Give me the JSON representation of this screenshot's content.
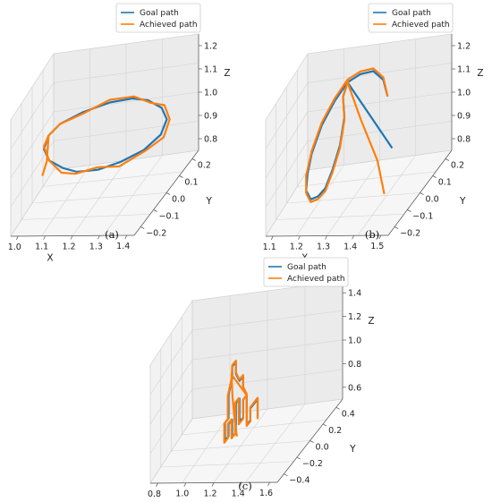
{
  "chart_data": [
    {
      "type": "line3d",
      "caption": "(a)",
      "legend": {
        "placement": "top-center",
        "entries": [
          "Goal path",
          "Achieved path"
        ]
      },
      "xlabel": "X",
      "ylabel": "Y",
      "zlabel": "Z",
      "x_ticks": [
        "1.0",
        "1.1",
        "1.2",
        "1.3",
        "1.4"
      ],
      "y_ticks": [
        "0.2",
        "0.1",
        "0.0",
        "−0.1",
        "−0.2"
      ],
      "z_ticks": [
        "1.2",
        "1.1",
        "1.0",
        "0.9",
        "0.8"
      ],
      "series": [
        {
          "name": "Goal path",
          "color": "#1f77b4",
          "points": [
            [
              1.0,
              0.0,
              1.0
            ],
            [
              1.02,
              0.07,
              1.0
            ],
            [
              1.07,
              0.13,
              1.0
            ],
            [
              1.14,
              0.17,
              1.0
            ],
            [
              1.2,
              0.19,
              1.0
            ],
            [
              1.27,
              0.18,
              1.0
            ],
            [
              1.33,
              0.14,
              1.0
            ],
            [
              1.38,
              0.08,
              1.0
            ],
            [
              1.4,
              0.0,
              1.0
            ],
            [
              1.38,
              -0.08,
              1.0
            ],
            [
              1.33,
              -0.14,
              1.0
            ],
            [
              1.26,
              -0.18,
              1.0
            ],
            [
              1.2,
              -0.19,
              1.0
            ],
            [
              1.13,
              -0.17,
              1.0
            ],
            [
              1.06,
              -0.12,
              1.0
            ],
            [
              1.01,
              -0.06,
              1.0
            ],
            [
              1.0,
              0.0,
              1.0
            ]
          ]
        },
        {
          "name": "Achieved path",
          "color": "#ff7f0e",
          "points": [
            [
              1.0,
              0.0,
              1.0
            ],
            [
              1.02,
              0.07,
              1.01
            ],
            [
              1.07,
              0.13,
              1.0
            ],
            [
              1.14,
              0.18,
              0.99
            ],
            [
              1.2,
              0.2,
              1.0
            ],
            [
              1.27,
              0.18,
              1.01
            ],
            [
              1.33,
              0.15,
              0.99
            ],
            [
              1.39,
              0.08,
              1.0
            ],
            [
              1.41,
              0.0,
              0.99
            ],
            [
              1.39,
              -0.08,
              1.0
            ],
            [
              1.34,
              -0.14,
              1.01
            ],
            [
              1.27,
              -0.18,
              0.99
            ],
            [
              1.2,
              -0.2,
              1.0
            ],
            [
              1.13,
              -0.17,
              1.01
            ],
            [
              1.06,
              -0.13,
              0.99
            ],
            [
              1.01,
              -0.06,
              1.0
            ],
            [
              1.0,
              0.0,
              1.0
            ],
            [
              1.02,
              0.05,
              0.94
            ],
            [
              1.03,
              0.1,
              0.92
            ]
          ]
        }
      ]
    },
    {
      "type": "line3d",
      "caption": "(b)",
      "legend": {
        "placement": "top-right",
        "entries": [
          "Goal path",
          "Achieved path"
        ]
      },
      "xlabel": "X",
      "ylabel": "Y",
      "zlabel": "Z",
      "x_ticks": [
        "1.1",
        "1.2",
        "1.3",
        "1.4",
        "1.5"
      ],
      "y_ticks": [
        "0.2",
        "0.1",
        "0.0",
        "−0.1",
        "−0.2"
      ],
      "z_ticks": [
        "1.2",
        "1.1",
        "1.0",
        "0.9",
        "0.8"
      ],
      "series": [
        {
          "name": "Goal path",
          "color": "#1f77b4",
          "points": [
            [
              1.3,
              -0.2,
              1.0
            ],
            [
              1.29,
              -0.19,
              1.07
            ],
            [
              1.28,
              -0.14,
              1.14
            ],
            [
              1.27,
              -0.07,
              1.18
            ],
            [
              1.26,
              0.0,
              1.2
            ],
            [
              1.25,
              0.07,
              1.18
            ],
            [
              1.24,
              0.14,
              1.14
            ],
            [
              1.23,
              0.19,
              1.07
            ],
            [
              1.22,
              0.2,
              1.0
            ],
            [
              1.21,
              0.19,
              0.93
            ],
            [
              1.2,
              0.14,
              0.86
            ],
            [
              1.19,
              0.07,
              0.82
            ],
            [
              1.18,
              0.0,
              0.8
            ],
            [
              1.17,
              -0.07,
              0.82
            ],
            [
              1.16,
              -0.14,
              0.86
            ],
            [
              1.15,
              -0.19,
              0.93
            ],
            [
              1.14,
              -0.2,
              1.0
            ],
            [
              1.26,
              0.0,
              1.2
            ],
            [
              1.42,
              0.0,
              0.95
            ]
          ]
        },
        {
          "name": "Achieved path",
          "color": "#ff7f0e",
          "points": [
            [
              1.3,
              -0.2,
              1.0
            ],
            [
              1.29,
              -0.19,
              1.08
            ],
            [
              1.28,
              -0.14,
              1.15
            ],
            [
              1.27,
              -0.07,
              1.19
            ],
            [
              1.26,
              0.0,
              1.21
            ],
            [
              1.25,
              0.07,
              1.19
            ],
            [
              1.24,
              0.14,
              1.15
            ],
            [
              1.23,
              0.19,
              1.08
            ],
            [
              1.22,
              0.21,
              1.0
            ],
            [
              1.21,
              0.19,
              0.92
            ],
            [
              1.2,
              0.14,
              0.85
            ],
            [
              1.19,
              0.07,
              0.81
            ],
            [
              1.18,
              0.0,
              0.79
            ],
            [
              1.17,
              -0.07,
              0.81
            ],
            [
              1.16,
              -0.14,
              0.85
            ],
            [
              1.15,
              -0.19,
              0.92
            ],
            [
              1.14,
              -0.2,
              1.0
            ],
            [
              1.2,
              -0.12,
              1.12
            ],
            [
              1.26,
              0.0,
              1.2
            ],
            [
              1.36,
              0.1,
              1.13
            ],
            [
              1.45,
              0.16,
              1.02
            ],
            [
              1.48,
              0.17,
              0.9
            ]
          ]
        }
      ]
    },
    {
      "type": "line3d",
      "caption": "(c)",
      "legend": {
        "placement": "top-center",
        "entries": [
          "Goal path",
          "Achieved path"
        ]
      },
      "xlabel": "X",
      "ylabel": "Y",
      "zlabel": "Z",
      "x_ticks": [
        "0.8",
        "1.0",
        "1.2",
        "1.4",
        "1.6"
      ],
      "y_ticks": [
        "0.4",
        "0.2",
        "0.0",
        "−0.2",
        "−0.4"
      ],
      "z_ticks": [
        "1.4",
        "1.2",
        "1.0",
        "0.8",
        "0.6"
      ],
      "series": [
        {
          "name": "Goal path",
          "color": "#1f77b4",
          "points": [
            [
              1.2,
              -0.2,
              0.6
            ],
            [
              1.2,
              -0.2,
              0.75
            ],
            [
              1.2,
              -0.1,
              0.75
            ],
            [
              1.2,
              -0.1,
              0.65
            ],
            [
              1.2,
              -0.05,
              0.65
            ],
            [
              1.2,
              -0.05,
              0.9
            ],
            [
              1.2,
              0.0,
              1.0
            ],
            [
              1.2,
              0.0,
              1.1
            ],
            [
              1.2,
              0.05,
              1.1
            ],
            [
              1.2,
              0.1,
              1.2
            ],
            [
              1.2,
              0.1,
              1.3
            ],
            [
              1.2,
              0.15,
              1.3
            ],
            [
              1.2,
              0.15,
              1.2
            ],
            [
              1.2,
              0.2,
              1.1
            ],
            [
              1.2,
              0.2,
              0.9
            ],
            [
              1.2,
              0.25,
              0.9
            ],
            [
              1.2,
              0.25,
              0.75
            ],
            [
              1.2,
              0.2,
              0.75
            ],
            [
              1.2,
              0.2,
              0.85
            ],
            [
              1.2,
              0.15,
              0.85
            ],
            [
              1.2,
              0.15,
              0.7
            ],
            [
              1.2,
              0.1,
              0.7
            ],
            [
              1.2,
              0.1,
              0.95
            ],
            [
              1.2,
              0.05,
              0.95
            ],
            [
              1.2,
              0.05,
              0.75
            ],
            [
              1.2,
              0.0,
              0.75
            ],
            [
              1.2,
              0.0,
              0.9
            ],
            [
              1.2,
              -0.05,
              0.9
            ]
          ]
        },
        {
          "name": "Achieved path",
          "color": "#ff7f0e",
          "points": [
            [
              1.2,
              -0.2,
              0.58
            ],
            [
              1.2,
              -0.2,
              0.76
            ],
            [
              1.2,
              -0.1,
              0.76
            ],
            [
              1.2,
              -0.1,
              0.64
            ],
            [
              1.2,
              -0.05,
              0.64
            ],
            [
              1.2,
              -0.05,
              0.91
            ],
            [
              1.2,
              0.0,
              1.01
            ],
            [
              1.2,
              0.0,
              1.11
            ],
            [
              1.2,
              0.05,
              1.11
            ],
            [
              1.2,
              0.1,
              1.21
            ],
            [
              1.2,
              0.1,
              1.31
            ],
            [
              1.2,
              0.15,
              1.31
            ],
            [
              1.2,
              0.16,
              1.2
            ],
            [
              1.2,
              0.21,
              1.1
            ],
            [
              1.2,
              0.21,
              0.9
            ],
            [
              1.2,
              0.26,
              0.9
            ],
            [
              1.2,
              0.26,
              0.74
            ],
            [
              1.2,
              0.21,
              0.74
            ],
            [
              1.2,
              0.21,
              0.86
            ],
            [
              1.2,
              0.16,
              0.86
            ],
            [
              1.2,
              0.16,
              0.7
            ],
            [
              1.2,
              0.11,
              0.7
            ],
            [
              1.2,
              0.11,
              0.96
            ],
            [
              1.2,
              0.06,
              0.96
            ],
            [
              1.2,
              0.06,
              0.74
            ],
            [
              1.2,
              0.0,
              0.74
            ],
            [
              1.2,
              0.0,
              0.9
            ],
            [
              1.2,
              -0.05,
              0.9
            ],
            [
              1.2,
              0.16,
              1.24
            ],
            [
              1.24,
              0.22,
              1.1
            ],
            [
              1.27,
              0.25,
              0.95
            ],
            [
              1.3,
              0.27,
              0.8
            ]
          ]
        }
      ]
    }
  ]
}
